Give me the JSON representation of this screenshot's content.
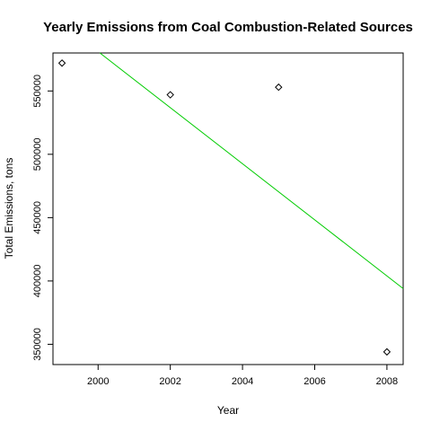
{
  "chart_data": {
    "type": "scatter",
    "title": "Yearly Emissions from Coal Combustion-Related Sources",
    "xlabel": "Year",
    "ylabel": "Total Emissions, tons",
    "xlim": [
      1998.75,
      2008.45
    ],
    "ylim": [
      334000,
      580000
    ],
    "x_ticks": [
      2000,
      2002,
      2004,
      2006,
      2008
    ],
    "y_ticks": [
      350000,
      400000,
      450000,
      500000,
      550000
    ],
    "x_tick_labels": [
      "2000",
      "2002",
      "2004",
      "2006",
      "2008"
    ],
    "y_tick_labels": [
      "350000",
      "400000",
      "450000",
      "500000",
      "550000"
    ],
    "marker": "diamond",
    "points": [
      {
        "x": 1999,
        "y": 572000
      },
      {
        "x": 2002,
        "y": 547000
      },
      {
        "x": 2005,
        "y": 553000
      },
      {
        "x": 2008,
        "y": 344000
      }
    ],
    "trend_line": {
      "color": "#00cc00",
      "from": {
        "x": 2000.05,
        "y": 580000
      },
      "to": {
        "x": 2008.45,
        "y": 394000
      }
    },
    "grid": false,
    "legend": "none"
  }
}
